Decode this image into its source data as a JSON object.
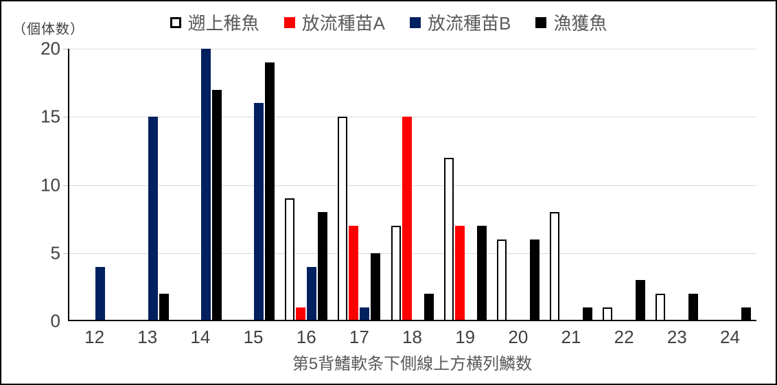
{
  "chart_data": {
    "type": "bar",
    "categories": [
      "12",
      "13",
      "14",
      "15",
      "16",
      "17",
      "18",
      "19",
      "20",
      "21",
      "22",
      "23",
      "24"
    ],
    "series": [
      {
        "id": "upstream-juvenile",
        "name": "遡上稚魚",
        "color": "#FFFFFF",
        "border": "#000000",
        "values": [
          0,
          0,
          0,
          0,
          9,
          15,
          7,
          12,
          6,
          8,
          1,
          2,
          0
        ]
      },
      {
        "id": "released-seed-a",
        "name": "放流種苗A",
        "color": "#FF0000",
        "values": [
          0,
          0,
          0,
          0,
          1,
          7,
          15,
          7,
          0,
          0,
          0,
          0,
          0
        ]
      },
      {
        "id": "released-seed-b",
        "name": "放流種苗B",
        "color": "#002060",
        "values": [
          4,
          15,
          20,
          16,
          4,
          1,
          0,
          0,
          0,
          0,
          0,
          0,
          0
        ]
      },
      {
        "id": "caught-fish",
        "name": "漁獲魚",
        "color": "#000000",
        "values": [
          0,
          2,
          17,
          19,
          8,
          5,
          2,
          7,
          6,
          1,
          3,
          2,
          1
        ]
      }
    ],
    "title": "",
    "xlabel": "第5背鰭軟条下側線上方横列鱗数",
    "ylabel": "（個体数）",
    "ylim": [
      0,
      20
    ],
    "yticks": [
      0,
      5,
      10,
      15,
      20
    ],
    "grid": true,
    "legend_position": "top",
    "gridline_color": "#D9D9D9",
    "axis_color": "#000000"
  }
}
